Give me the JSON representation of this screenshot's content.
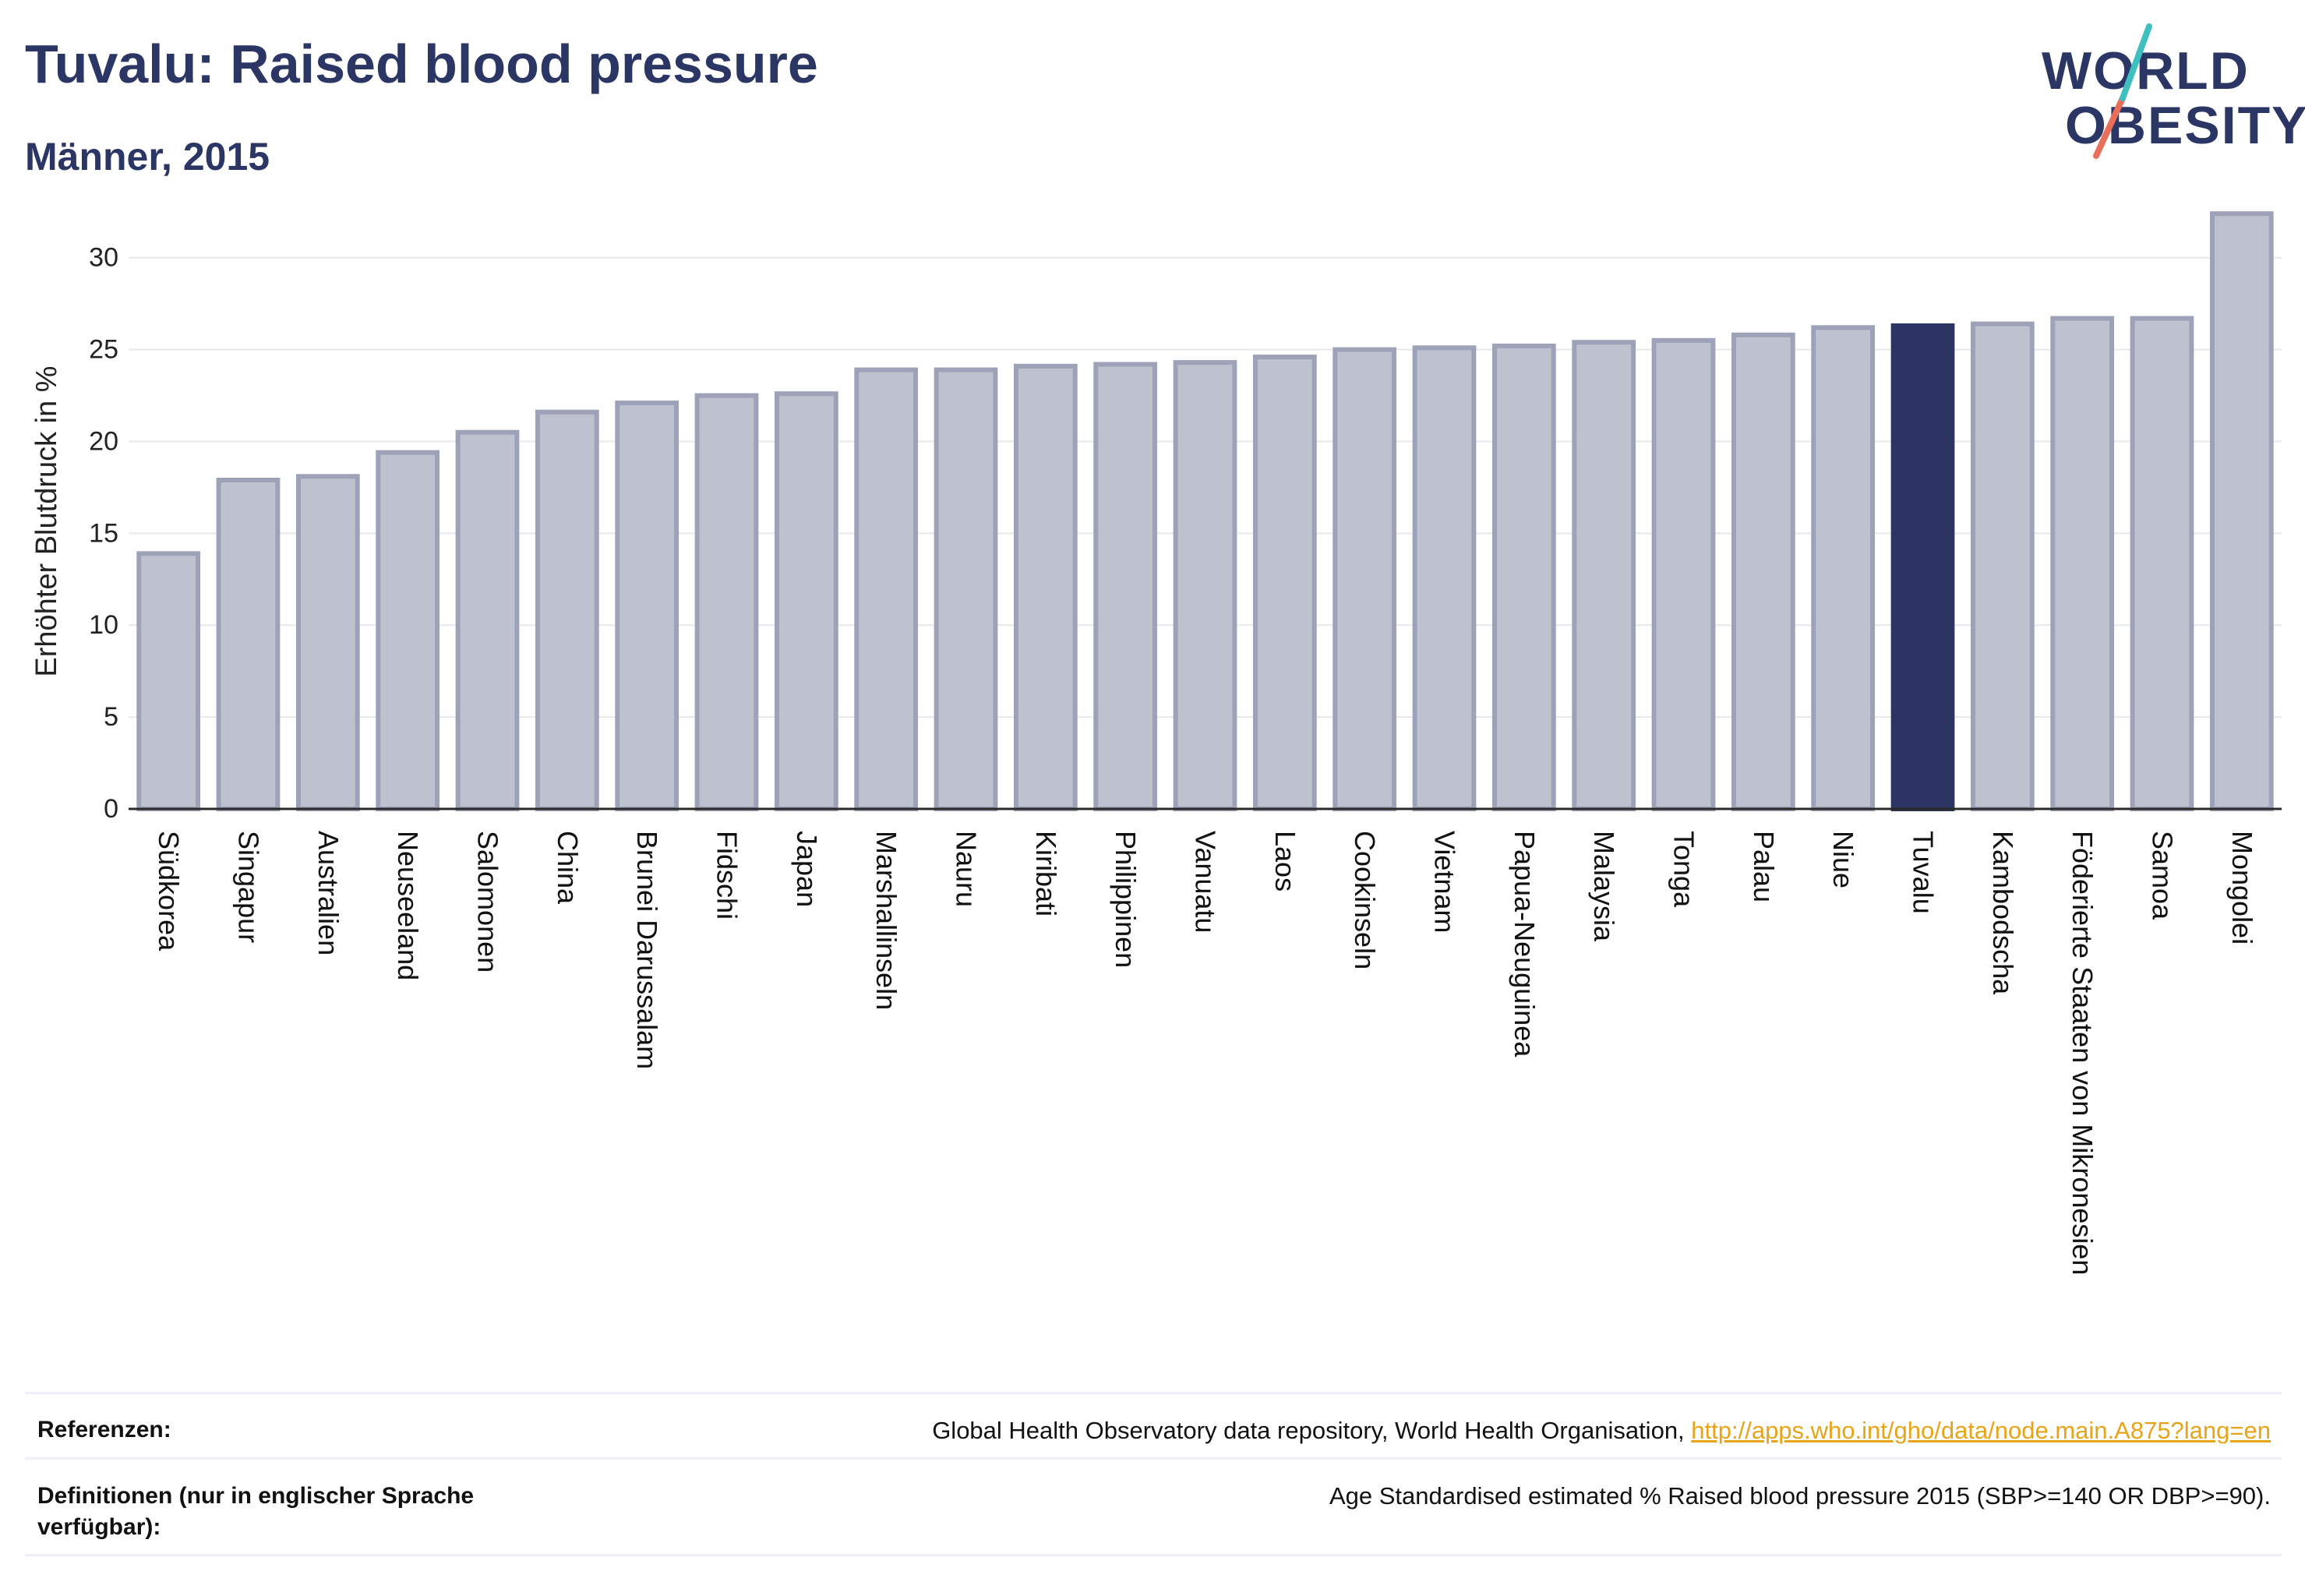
{
  "header": {
    "title": "Tuvalu: Raised blood pressure",
    "subtitle": "Männer, 2015"
  },
  "logo": {
    "line1": "WORLD",
    "line2": "OBESITY",
    "accent_teal": "#3fbfbf",
    "accent_coral": "#e8705a",
    "text_color": "#2b3664"
  },
  "chart_data": {
    "type": "bar",
    "ylabel": "Erhöhter Blutdruck in %",
    "ylim": [
      0,
      33
    ],
    "yticks": [
      0,
      5,
      10,
      15,
      20,
      25,
      30
    ],
    "grid": true,
    "highlight": "Tuvalu",
    "colors": {
      "bar": "#bec1ce",
      "bar_edge": "#9da2b9",
      "highlight": "#2b3462",
      "grid": "#e6e8ee",
      "axis": "#2a2a2a"
    },
    "categories": [
      "Südkorea",
      "Singapur",
      "Australien",
      "Neuseeland",
      "Salomonen",
      "China",
      "Brunei Darussalam",
      "Fidschi",
      "Japan",
      "Marshallinseln",
      "Nauru",
      "Kiribati",
      "Philippinen",
      "Vanuatu",
      "Laos",
      "Cookinseln",
      "Vietnam",
      "Papua-Neuguinea",
      "Malaysia",
      "Tonga",
      "Palau",
      "Niue",
      "Tuvalu",
      "Kambodscha",
      "Föderierte Staaten von Mikronesien",
      "Samoa",
      "Mongolei"
    ],
    "values": [
      13.9,
      17.9,
      18.1,
      19.4,
      20.5,
      21.6,
      22.1,
      22.5,
      22.6,
      23.9,
      23.9,
      24.1,
      24.2,
      24.3,
      24.6,
      25.0,
      25.1,
      25.2,
      25.4,
      25.5,
      25.8,
      26.2,
      26.3,
      26.4,
      26.7,
      26.7,
      32.4
    ]
  },
  "footer": {
    "references_label": "Referenzen:",
    "references_text": "Global Health Observatory data repository, World Health Organisation, ",
    "references_link": "http://apps.who.int/gho/data/node.main.A875?lang=en",
    "definitions_label": "Definitionen (nur in englischer Sprache verfügbar):",
    "definitions_text": "Age Standardised estimated % Raised blood pressure 2015 (SBP>=140 OR DBP>=90)."
  }
}
